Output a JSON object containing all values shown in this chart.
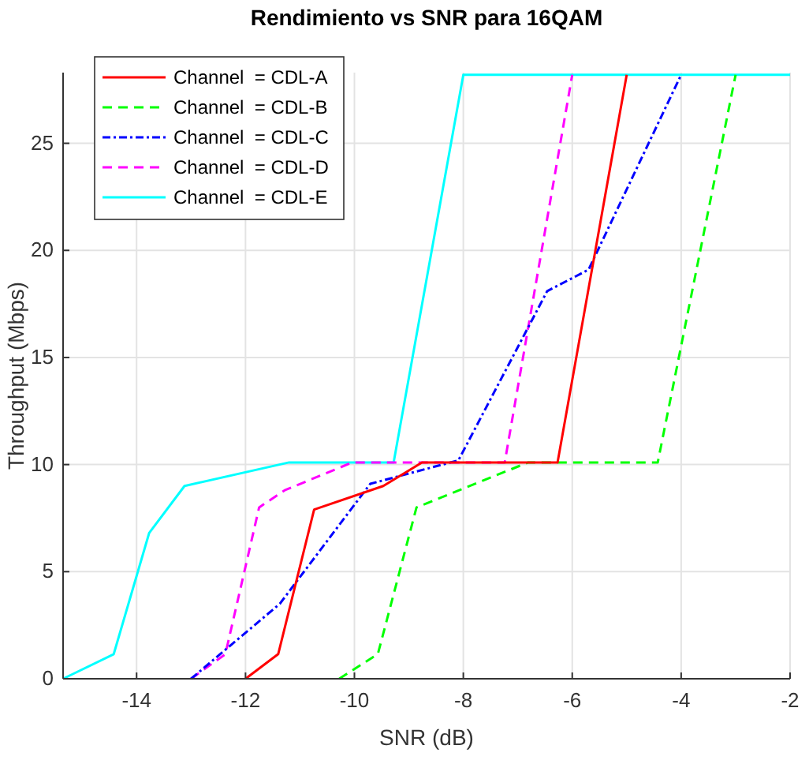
{
  "chart_data": {
    "type": "line",
    "title": "Rendimiento vs SNR para 16QAM",
    "xlabel": "SNR (dB)",
    "ylabel": "Throughput (Mbps)",
    "xlim": [
      -15.35,
      -2
    ],
    "xticks": [
      -14,
      -12,
      -10,
      -8,
      -6,
      -4,
      -2
    ],
    "ylim": [
      0,
      28.3
    ],
    "yticks": [
      0,
      5,
      10,
      15,
      20,
      25
    ],
    "grid": true,
    "legend": "top left",
    "series": [
      {
        "name": "Channel  = CDL-A",
        "color": "#ff0000",
        "line_style": "solid",
        "x": [
          -12,
          -11.4,
          -10.74,
          -9.47,
          -8.76,
          -6.27,
          -5.0
        ],
        "values": [
          0,
          1.15,
          7.9,
          9.0,
          10.1,
          10.1,
          28.2
        ]
      },
      {
        "name": "Channel  = CDL-B",
        "color": "#00ff00",
        "line_style": "dashed",
        "x": [
          -10.28,
          -9.57,
          -8.86,
          -6.81,
          -4.43,
          -3.0
        ],
        "values": [
          0,
          1.15,
          8.0,
          10.1,
          10.1,
          28.2
        ]
      },
      {
        "name": "Channel  = CDL-C",
        "color": "#0000ff",
        "line_style": "dashdot",
        "x": [
          -13.0,
          -11.37,
          -9.71,
          -8.09,
          -6.46,
          -5.7,
          -4.0
        ],
        "values": [
          0,
          3.5,
          9.1,
          10.2,
          18.1,
          19.1,
          28.2
        ]
      },
      {
        "name": "Channel  = CDL-D",
        "color": "#ff00ff",
        "line_style": "dashed",
        "x": [
          -13.0,
          -12.37,
          -11.75,
          -11.28,
          -10.04,
          -7.24,
          -6.0
        ],
        "values": [
          0,
          1.15,
          8.0,
          8.8,
          10.1,
          10.1,
          28.2
        ]
      },
      {
        "name": "Channel  = CDL-E",
        "color": "#00ffff",
        "line_style": "solid",
        "x": [
          -15.35,
          -14.42,
          -13.77,
          -13.12,
          -11.2,
          -9.28,
          -8.0,
          -2
        ],
        "values": [
          0,
          1.15,
          6.8,
          9.0,
          10.1,
          10.1,
          28.2,
          28.2
        ]
      }
    ]
  }
}
